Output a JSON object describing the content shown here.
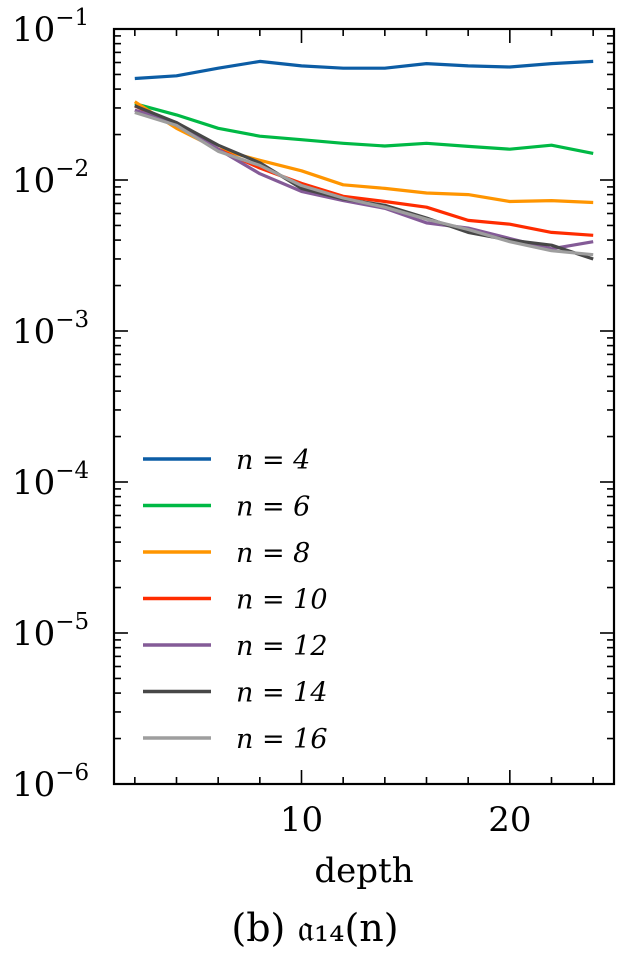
{
  "caption": "(b) 𝔞₁₄(n)",
  "chart_data": {
    "type": "line",
    "title": "",
    "xlabel": "depth",
    "ylabel": "",
    "yscale": "log",
    "xlim": [
      1,
      25
    ],
    "ylim": [
      1e-06,
      0.1
    ],
    "xticks": [
      10,
      20
    ],
    "ytick_labels": [
      {
        "value": 0.1,
        "base": "10",
        "exp": "−1"
      },
      {
        "value": 0.01,
        "base": "10",
        "exp": "−2"
      },
      {
        "value": 0.001,
        "base": "10",
        "exp": "−3"
      },
      {
        "value": 0.0001,
        "base": "10",
        "exp": "−4"
      },
      {
        "value": 1e-05,
        "base": "10",
        "exp": "−5"
      },
      {
        "value": 1e-06,
        "base": "10",
        "exp": "−6"
      }
    ],
    "grid": false,
    "legend_position": "lower-left",
    "x": [
      2,
      4,
      6,
      8,
      10,
      12,
      14,
      16,
      18,
      20,
      22,
      24
    ],
    "series": [
      {
        "name": "n = 4",
        "color": "#0C5DA5",
        "values": [
          0.047,
          0.049,
          0.055,
          0.061,
          0.057,
          0.055,
          0.055,
          0.059,
          0.057,
          0.056,
          0.059,
          0.061
        ]
      },
      {
        "name": "n = 6",
        "color": "#00B945",
        "values": [
          0.032,
          0.027,
          0.022,
          0.0195,
          0.0185,
          0.0175,
          0.0168,
          0.0175,
          0.0167,
          0.016,
          0.017,
          0.015
        ]
      },
      {
        "name": "n = 8",
        "color": "#FF9500",
        "values": [
          0.033,
          0.022,
          0.016,
          0.0135,
          0.0115,
          0.0093,
          0.0088,
          0.0082,
          0.008,
          0.0072,
          0.0073,
          0.0071
        ]
      },
      {
        "name": "n = 10",
        "color": "#FF2C00",
        "values": [
          0.031,
          0.023,
          0.016,
          0.012,
          0.0095,
          0.0078,
          0.0072,
          0.0066,
          0.0054,
          0.0051,
          0.0045,
          0.0043
        ]
      },
      {
        "name": "n = 12",
        "color": "#845B97",
        "values": [
          0.029,
          0.024,
          0.016,
          0.011,
          0.0084,
          0.0073,
          0.0065,
          0.0052,
          0.0048,
          0.0041,
          0.0035,
          0.0039
        ]
      },
      {
        "name": "n = 14",
        "color": "#474747",
        "values": [
          0.031,
          0.024,
          0.017,
          0.013,
          0.0088,
          0.0075,
          0.0068,
          0.0056,
          0.0045,
          0.004,
          0.0037,
          0.003
        ]
      },
      {
        "name": "n = 16",
        "color": "#9E9E9E",
        "values": [
          0.028,
          0.023,
          0.0155,
          0.0125,
          0.0092,
          0.0076,
          0.0066,
          0.0055,
          0.0047,
          0.0039,
          0.0034,
          0.0032
        ]
      }
    ]
  }
}
